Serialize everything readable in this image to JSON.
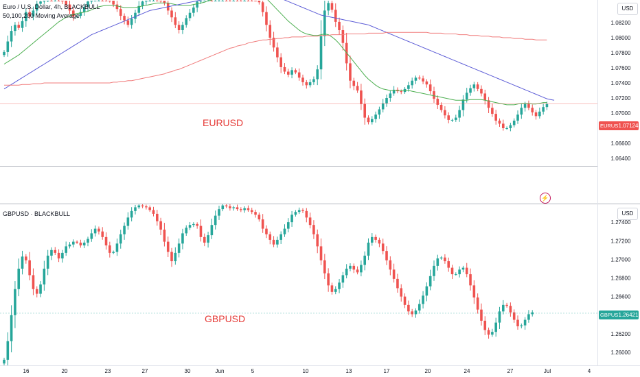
{
  "panes": [
    {
      "title": "Euro / U.S. Dollar, 4h, BLACKBULL",
      "indicator_label": "50,100,200 Moving Average",
      "unit": "USD",
      "watermark": "EURUSD",
      "current_symbol": "EURUSD",
      "current_price": "1.07124",
      "current_value": 1.07124,
      "y_ticks": [
        "1.08200",
        "1.08000",
        "1.07800",
        "1.07600",
        "1.07400",
        "1.07200",
        "1.07000",
        "1.06800",
        "1.06600",
        "1.06400"
      ],
      "ylim": [
        1.063,
        1.085
      ],
      "closes": [
        1.0781,
        1.0795,
        1.0809,
        1.0817,
        1.0813,
        1.0822,
        1.0834,
        1.0828,
        1.0836,
        1.0845,
        1.0848,
        1.0852,
        1.0858,
        1.0855,
        1.0862,
        1.0857,
        1.085,
        1.0844,
        1.0836,
        1.0828,
        1.0829,
        1.0834,
        1.0841,
        1.0848,
        1.0853,
        1.0858,
        1.0862,
        1.086,
        1.0856,
        1.0851,
        1.0844,
        1.0838,
        1.0829,
        1.0823,
        1.0817,
        1.0825,
        1.0833,
        1.0842,
        1.0848,
        1.0853,
        1.0858,
        1.086,
        1.0856,
        1.0851,
        1.0846,
        1.0836,
        1.0827,
        1.0817,
        1.081,
        1.0817,
        1.0826,
        1.0833,
        1.084,
        1.0848,
        1.0853,
        1.0857,
        1.0859,
        1.0856,
        1.0858,
        1.086,
        1.0862,
        1.086,
        1.0858,
        1.0861,
        1.0859,
        1.0857,
        1.086,
        1.0859,
        1.0858,
        1.0853,
        1.0847,
        1.0834,
        1.0817,
        1.08,
        1.0787,
        1.0774,
        1.0761,
        1.0755,
        1.0751,
        1.0757,
        1.0754,
        1.0747,
        1.0741,
        1.0737,
        1.0741,
        1.0745,
        1.0758,
        1.0802,
        1.0836,
        1.0846,
        1.0837,
        1.0821,
        1.081,
        1.0793,
        1.0766,
        1.0743,
        1.0736,
        1.073,
        1.0712,
        1.0694,
        1.0688,
        1.0692,
        1.0698,
        1.0705,
        1.0713,
        1.072,
        1.0726,
        1.0731,
        1.0729,
        1.0728,
        1.0732,
        1.0737,
        1.0743,
        1.0747,
        1.0746,
        1.0742,
        1.0738,
        1.0729,
        1.0719,
        1.0711,
        1.0704,
        1.0697,
        1.0691,
        1.0691,
        1.0694,
        1.0704,
        1.0718,
        1.0727,
        1.0733,
        1.0738,
        1.0732,
        1.0726,
        1.0717,
        1.0707,
        1.0699,
        1.069,
        1.0686,
        1.068,
        1.068,
        1.0684,
        1.069,
        1.0698,
        1.0707,
        1.0712,
        1.0707,
        1.0701,
        1.0696,
        1.0702,
        1.0708,
        1.0712
      ],
      "ma": [
        {
          "color": "#4caf50",
          "values": [
            1.0765,
            1.0768,
            1.0771,
            1.0774,
            1.0777,
            1.0781,
            1.0785,
            1.0789,
            1.0793,
            1.0797,
            1.0801,
            1.0805,
            1.0809,
            1.0813,
            1.0817,
            1.0821,
            1.0824,
            1.0827,
            1.0829,
            1.0831,
            1.0832,
            1.0833,
            1.0834,
            1.0835,
            1.0837,
            1.0839,
            1.0841,
            1.0842,
            1.0843,
            1.0843,
            1.0843,
            1.0842,
            1.0841,
            1.084,
            1.084,
            1.084,
            1.084,
            1.0841,
            1.0842,
            1.0843,
            1.0844,
            1.0845,
            1.0846,
            1.0846,
            1.0846,
            1.0846,
            1.0845,
            1.0844,
            1.0843,
            1.0843,
            1.0843,
            1.0843,
            1.0844,
            1.0845,
            1.0846,
            1.0847,
            1.0849,
            1.085,
            1.0852,
            1.0853,
            1.0855,
            1.0857,
            1.0858,
            1.0859,
            1.086,
            1.0861,
            1.0862,
            1.0862,
            1.0862,
            1.0861,
            1.0859,
            1.0856,
            1.0852,
            1.0847,
            1.0842,
            1.0837,
            1.0832,
            1.0827,
            1.0822,
            1.0818,
            1.0814,
            1.081,
            1.0807,
            1.0805,
            1.0804,
            1.0803,
            1.0803,
            1.0804,
            1.0805,
            1.0804,
            1.0801,
            1.0797,
            1.0792,
            1.0786,
            1.078,
            1.0774,
            1.0768,
            1.0762,
            1.0756,
            1.075,
            1.0745,
            1.0741,
            1.0737,
            1.0734,
            1.0732,
            1.0731,
            1.073,
            1.073,
            1.073,
            1.073,
            1.073,
            1.073,
            1.0729,
            1.0728,
            1.0727,
            1.0726,
            1.0725,
            1.0724,
            1.0723,
            1.0722,
            1.0721,
            1.072,
            1.0719,
            1.0718,
            1.0717,
            1.0717,
            1.0717,
            1.0717,
            1.0718,
            1.0718,
            1.0718,
            1.0718,
            1.0717,
            1.0716,
            1.0715,
            1.0714,
            1.0713,
            1.0712,
            1.0711,
            1.0711,
            1.0711,
            1.0712,
            1.0713,
            1.0713,
            1.0713,
            1.0712,
            1.0712,
            1.0713,
            1.0714,
            1.0714
          ]
        },
        {
          "color": "#5b5bd6",
          "values": [
            1.0732,
            1.0735,
            1.0738,
            1.0741,
            1.0744,
            1.0747,
            1.075,
            1.0753,
            1.0756,
            1.0759,
            1.0762,
            1.0765,
            1.0768,
            1.0771,
            1.0774,
            1.0777,
            1.078,
            1.0783,
            1.0786,
            1.0789,
            1.0792,
            1.0795,
            1.0798,
            1.0801,
            1.0804,
            1.0806,
            1.0808,
            1.081,
            1.0812,
            1.0814,
            1.0816,
            1.0818,
            1.082,
            1.0822,
            1.0824,
            1.0826,
            1.0828,
            1.083,
            1.0832,
            1.0834,
            1.0836,
            1.0837,
            1.0838,
            1.0839,
            1.084,
            1.0841,
            1.0842,
            1.0843,
            1.0844,
            1.0845,
            1.0846,
            1.0847,
            1.0848,
            1.0849,
            1.085,
            1.0851,
            1.0852,
            1.0853,
            1.0854,
            1.0855,
            1.0856,
            1.0857,
            1.0858,
            1.0859,
            1.0859,
            1.086,
            1.086,
            1.0861,
            1.0861,
            1.0861,
            1.0861,
            1.086,
            1.0859,
            1.0858,
            1.0856,
            1.0854,
            1.0852,
            1.085,
            1.0848,
            1.0846,
            1.0844,
            1.0842,
            1.084,
            1.0838,
            1.0836,
            1.0834,
            1.0832,
            1.083,
            1.0829,
            1.0828,
            1.0827,
            1.0826,
            1.0825,
            1.0824,
            1.0823,
            1.0822,
            1.0821,
            1.082,
            1.0819,
            1.0818,
            1.0817,
            1.0815,
            1.0813,
            1.0811,
            1.0809,
            1.0807,
            1.0805,
            1.0803,
            1.0801,
            1.0799,
            1.0797,
            1.0795,
            1.0793,
            1.0791,
            1.0789,
            1.0787,
            1.0785,
            1.0783,
            1.0781,
            1.0779,
            1.0777,
            1.0775,
            1.0773,
            1.0771,
            1.0769,
            1.0767,
            1.0765,
            1.0763,
            1.0761,
            1.0759,
            1.0757,
            1.0755,
            1.0753,
            1.0751,
            1.0749,
            1.0747,
            1.0745,
            1.0743,
            1.0741,
            1.0739,
            1.0737,
            1.0735,
            1.0733,
            1.0731,
            1.0729,
            1.0727,
            1.0725,
            1.0723,
            1.0721,
            1.0719,
            1.0718,
            1.0717
          ]
        },
        {
          "color": "#f07a7a",
          "values": [
            1.0737,
            1.0737,
            1.0737,
            1.0737,
            1.0737,
            1.0738,
            1.0738,
            1.0738,
            1.0739,
            1.0739,
            1.0739,
            1.074,
            1.074,
            1.074,
            1.074,
            1.074,
            1.074,
            1.074,
            1.074,
            1.074,
            1.074,
            1.074,
            1.074,
            1.074,
            1.074,
            1.074,
            1.074,
            1.074,
            1.074,
            1.074,
            1.0741,
            1.0741,
            1.0742,
            1.0742,
            1.0743,
            1.0743,
            1.0744,
            1.0745,
            1.0746,
            1.0747,
            1.0748,
            1.0749,
            1.075,
            1.0751,
            1.0752,
            1.0754,
            1.0755,
            1.0757,
            1.0758,
            1.076,
            1.0762,
            1.0764,
            1.0766,
            1.0768,
            1.077,
            1.0772,
            1.0774,
            1.0776,
            1.0778,
            1.078,
            1.0782,
            1.0784,
            1.0786,
            1.0787,
            1.0789,
            1.079,
            1.0791,
            1.0793,
            1.0794,
            1.0795,
            1.0796,
            1.0797,
            1.0797,
            1.0798,
            1.0798,
            1.0799,
            1.0799,
            1.08,
            1.08,
            1.0801,
            1.0801,
            1.0801,
            1.0801,
            1.0802,
            1.0802,
            1.0802,
            1.0802,
            1.0803,
            1.0803,
            1.0803,
            1.0804,
            1.0804,
            1.0804,
            1.0804,
            1.0805,
            1.0805,
            1.0805,
            1.0805,
            1.0805,
            1.0805,
            1.0806,
            1.0806,
            1.0806,
            1.0806,
            1.0806,
            1.0807,
            1.0807,
            1.0807,
            1.0807,
            1.0807,
            1.0807,
            1.0807,
            1.0807,
            1.0807,
            1.0807,
            1.0807,
            1.0807,
            1.0806,
            1.0806,
            1.0806,
            1.0806,
            1.0805,
            1.0805,
            1.0805,
            1.0805,
            1.0804,
            1.0804,
            1.0804,
            1.0803,
            1.0803,
            1.0803,
            1.0802,
            1.0802,
            1.0802,
            1.0801,
            1.0801,
            1.0801,
            1.08,
            1.08,
            1.08,
            1.0799,
            1.0799,
            1.0799,
            1.0798,
            1.0798,
            1.0798,
            1.0797,
            1.0797,
            1.0797,
            1.0797
          ]
        }
      ]
    },
    {
      "title": "GBPUSD · BLACKBULL",
      "unit": "USD",
      "watermark": "GBPUSD",
      "current_symbol": "GBPUSD",
      "current_price": "1.26421",
      "current_value": 1.26421,
      "y_ticks": [
        "1.27400",
        "1.27200",
        "1.27000",
        "1.26800",
        "1.26600",
        "1.26400",
        "1.26200",
        "1.26000"
      ],
      "ylim": [
        1.2586,
        1.276
      ],
      "closes": [
        1.2592,
        1.2612,
        1.264,
        1.2668,
        1.269,
        1.2703,
        1.2699,
        1.2683,
        1.2668,
        1.2663,
        1.2673,
        1.269,
        1.2704,
        1.271,
        1.2707,
        1.2701,
        1.2707,
        1.2714,
        1.2716,
        1.2719,
        1.2718,
        1.2715,
        1.2718,
        1.2722,
        1.2728,
        1.2733,
        1.273,
        1.2724,
        1.2715,
        1.2707,
        1.2708,
        1.2717,
        1.2727,
        1.2736,
        1.2745,
        1.2752,
        1.2756,
        1.2758,
        1.2757,
        1.2756,
        1.2753,
        1.2749,
        1.2741,
        1.2732,
        1.2719,
        1.2708,
        1.2698,
        1.2707,
        1.2717,
        1.2728,
        1.2734,
        1.2737,
        1.2738,
        1.2736,
        1.2724,
        1.2718,
        1.2726,
        1.2737,
        1.2747,
        1.2754,
        1.2758,
        1.2757,
        1.2755,
        1.2756,
        1.2754,
        1.2753,
        1.2755,
        1.2753,
        1.2751,
        1.2748,
        1.2743,
        1.2733,
        1.2727,
        1.2721,
        1.2716,
        1.2721,
        1.2727,
        1.2733,
        1.274,
        1.2748,
        1.2751,
        1.2753,
        1.2752,
        1.2745,
        1.2737,
        1.2727,
        1.2714,
        1.2699,
        1.2685,
        1.2672,
        1.2665,
        1.2668,
        1.2675,
        1.2683,
        1.269,
        1.2693,
        1.2689,
        1.2686,
        1.2694,
        1.2704,
        1.2718,
        1.2724,
        1.2721,
        1.2717,
        1.2709,
        1.2699,
        1.2689,
        1.2679,
        1.2669,
        1.266,
        1.2651,
        1.2644,
        1.2641,
        1.2645,
        1.2652,
        1.2661,
        1.2671,
        1.2682,
        1.2693,
        1.2701,
        1.2702,
        1.2698,
        1.2691,
        1.2684,
        1.2684,
        1.2689,
        1.2691,
        1.2684,
        1.2672,
        1.2659,
        1.2646,
        1.2634,
        1.2624,
        1.2619,
        1.2622,
        1.2632,
        1.2644,
        1.2651,
        1.265,
        1.2643,
        1.2635,
        1.2628,
        1.2629,
        1.2635,
        1.2641,
        1.2643
      ]
    }
  ],
  "x_ticks": [
    "16",
    "20",
    "23",
    "27",
    "30",
    "Jun",
    "5",
    "10",
    "13",
    "17",
    "20",
    "24",
    "27",
    "Jul",
    "4"
  ],
  "colors": {
    "up": "#26a69a",
    "down": "#ef5350",
    "eur_tag": "#ef5350",
    "gbp_tag": "#26a69a",
    "watermark": "#e53935"
  }
}
